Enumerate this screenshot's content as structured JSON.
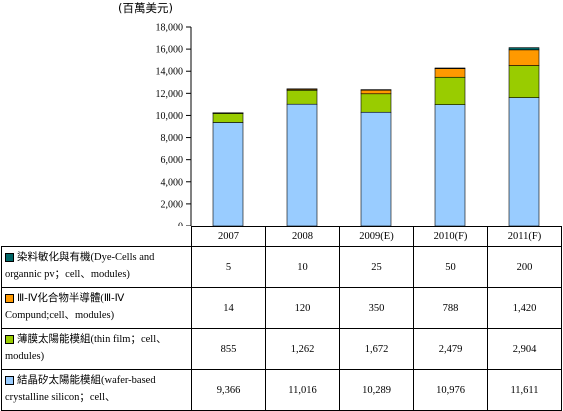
{
  "chart_data": {
    "type": "bar",
    "stacked": true,
    "unit": "(百萬美元)",
    "ylim": [
      0,
      18000
    ],
    "yticks": [
      0,
      2000,
      4000,
      6000,
      8000,
      10000,
      12000,
      14000,
      16000,
      18000
    ],
    "ytick_labels": [
      "0",
      "2,000",
      "4,000",
      "6,000",
      "8,000",
      "10,000",
      "12,000",
      "14,000",
      "16,000",
      "18,000"
    ],
    "categories": [
      "2007",
      "2008",
      "2009(E)",
      "2010(F)",
      "2011(F)"
    ],
    "series": [
      {
        "name": "結晶矽太陽能模組(wafer-based crystalline silicon；cell、",
        "color": "#99ccff",
        "values": [
          9366,
          11016,
          10289,
          10976,
          11611
        ],
        "labels": [
          "9,366",
          "11,016",
          "10,289",
          "10,976",
          "11,611"
        ]
      },
      {
        "name": "薄膜太陽能模組(thin film；cell、modules)",
        "color": "#99cc00",
        "values": [
          855,
          1262,
          1672,
          2479,
          2904
        ],
        "labels": [
          "855",
          "1,262",
          "1,672",
          "2,479",
          "2,904"
        ]
      },
      {
        "name": "Ⅲ-Ⅳ化合物半導體(Ⅲ-Ⅳ Compund;cell、modules)",
        "color": "#ff9900",
        "values": [
          14,
          120,
          350,
          788,
          1420
        ],
        "labels": [
          "14",
          "120",
          "350",
          "788",
          "1,420"
        ]
      },
      {
        "name": "染料敏化與有機(Dye-Cells and organnic pv；cell、modules)",
        "color": "#006666",
        "values": [
          5,
          10,
          25,
          50,
          200
        ],
        "labels": [
          "5",
          "10",
          "25",
          "50",
          "200"
        ]
      }
    ],
    "legend_placement": "table-rows"
  }
}
